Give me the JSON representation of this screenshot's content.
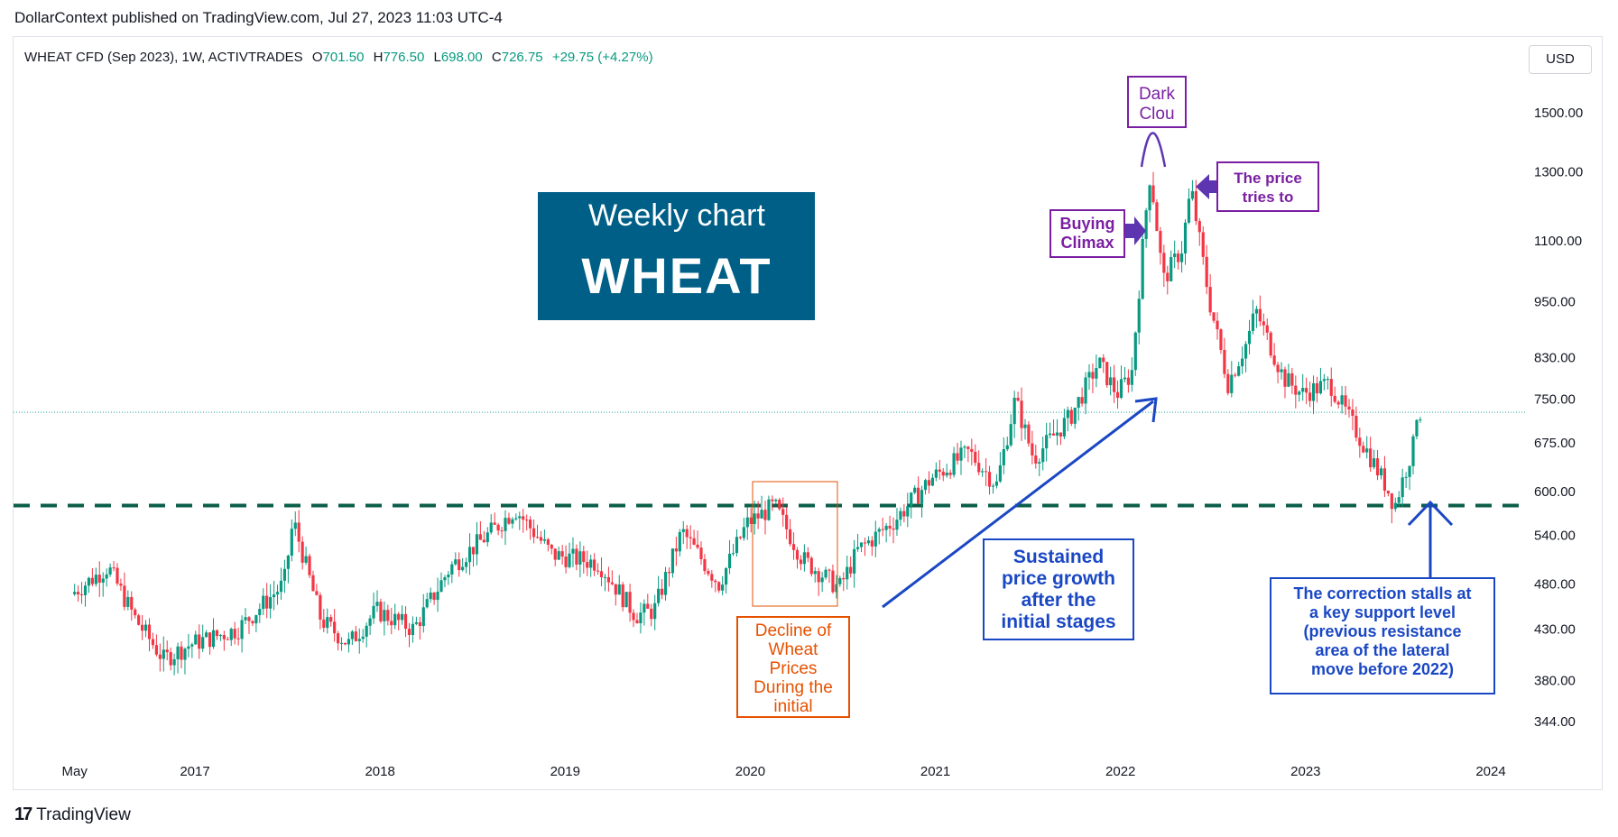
{
  "publisher": "DollarContext published on TradingView.com, Jul 27, 2023 11:03 UTC-4",
  "legend": {
    "symbol": "WHEAT CFD (Sep 2023), 1W, ACTIVTRADES",
    "o_label": "O",
    "o_value": "701.50",
    "h_label": "H",
    "h_value": "776.50",
    "l_label": "L",
    "l_value": "698.00",
    "c_label": "C",
    "c_value": "726.75",
    "change": "+29.75 (+4.27%)"
  },
  "currency": "USD",
  "footer": {
    "logo": "17",
    "brand": "TradingView"
  },
  "colors": {
    "up": "#089981",
    "down": "#f23645",
    "support": "#0b5e48",
    "title_bg": "#005f87",
    "purple": "#7b1fa2",
    "arrow_purple": "#5e35b1",
    "blue": "#1a47c4",
    "orange": "#e65100",
    "price_line": "#26a69a"
  },
  "chart_data": {
    "type": "candlestick",
    "timeframe": "1W",
    "x_tick_labels": [
      "May",
      "2017",
      "2018",
      "2019",
      "2020",
      "2021",
      "2022",
      "2023",
      "2024"
    ],
    "x_ticks": [
      2016.35,
      2017.0,
      2018.0,
      2019.0,
      2020.0,
      2021.0,
      2022.0,
      2023.0,
      2024.0
    ],
    "y_tick_labels": [
      "1500.00",
      "1300.00",
      "1100.00",
      "950.00",
      "830.00",
      "750.00",
      "675.00",
      "600.00",
      "540.00",
      "480.00",
      "430.00",
      "380.00",
      "344.00"
    ],
    "y_ticks": [
      1500,
      1300,
      1100,
      950,
      830,
      750,
      675,
      600,
      540,
      480,
      430,
      380,
      344
    ],
    "y_scale": "log",
    "ylim": [
      320,
      1750
    ],
    "xlim": [
      2016.1,
      2024.2
    ],
    "last_price": 726.75,
    "support_level": 580,
    "trend_path": [
      [
        2016.35,
        468
      ],
      [
        2016.55,
        500
      ],
      [
        2016.7,
        440
      ],
      [
        2016.85,
        400
      ],
      [
        2017.0,
        415
      ],
      [
        2017.25,
        430
      ],
      [
        2017.5,
        480
      ],
      [
        2017.55,
        560
      ],
      [
        2017.7,
        440
      ],
      [
        2017.85,
        415
      ],
      [
        2018.0,
        450
      ],
      [
        2018.2,
        430
      ],
      [
        2018.4,
        500
      ],
      [
        2018.6,
        540
      ],
      [
        2018.75,
        575
      ],
      [
        2018.95,
        515
      ],
      [
        2019.2,
        505
      ],
      [
        2019.4,
        445
      ],
      [
        2019.5,
        450
      ],
      [
        2019.65,
        545
      ],
      [
        2019.85,
        480
      ],
      [
        2020.0,
        555
      ],
      [
        2020.15,
        580
      ],
      [
        2020.3,
        510
      ],
      [
        2020.5,
        475
      ],
      [
        2020.6,
        520
      ],
      [
        2020.8,
        560
      ],
      [
        2021.0,
        620
      ],
      [
        2021.2,
        660
      ],
      [
        2021.35,
        610
      ],
      [
        2021.45,
        750
      ],
      [
        2021.55,
        650
      ],
      [
        2021.75,
        720
      ],
      [
        2021.9,
        820
      ],
      [
        2022.0,
        760
      ],
      [
        2022.08,
        800
      ],
      [
        2022.15,
        1150
      ],
      [
        2022.18,
        1300
      ],
      [
        2022.25,
        1000
      ],
      [
        2022.35,
        1080
      ],
      [
        2022.4,
        1250
      ],
      [
        2022.5,
        950
      ],
      [
        2022.6,
        780
      ],
      [
        2022.7,
        860
      ],
      [
        2022.75,
        930
      ],
      [
        2022.9,
        790
      ],
      [
        2023.0,
        760
      ],
      [
        2023.15,
        780
      ],
      [
        2023.3,
        690
      ],
      [
        2023.45,
        610
      ],
      [
        2023.5,
        580
      ],
      [
        2023.6,
        670
      ],
      [
        2023.62,
        727
      ]
    ]
  },
  "annotations": {
    "title_line1": "Weekly chart",
    "title_line2": "WHEAT",
    "dark_cloud": "Dark\nClou",
    "buying_climax": "Buying\nClimax",
    "price_tries": "The price\ntries to",
    "decline": "Decline of\nWheat\nPrices\nDuring the\ninitial",
    "sustained": "Sustained\nprice growth\nafter the\ninitial stages",
    "correction": "The correction stalls at\na key support level\n(previous resistance\narea of the lateral\nmove before 2022)"
  }
}
